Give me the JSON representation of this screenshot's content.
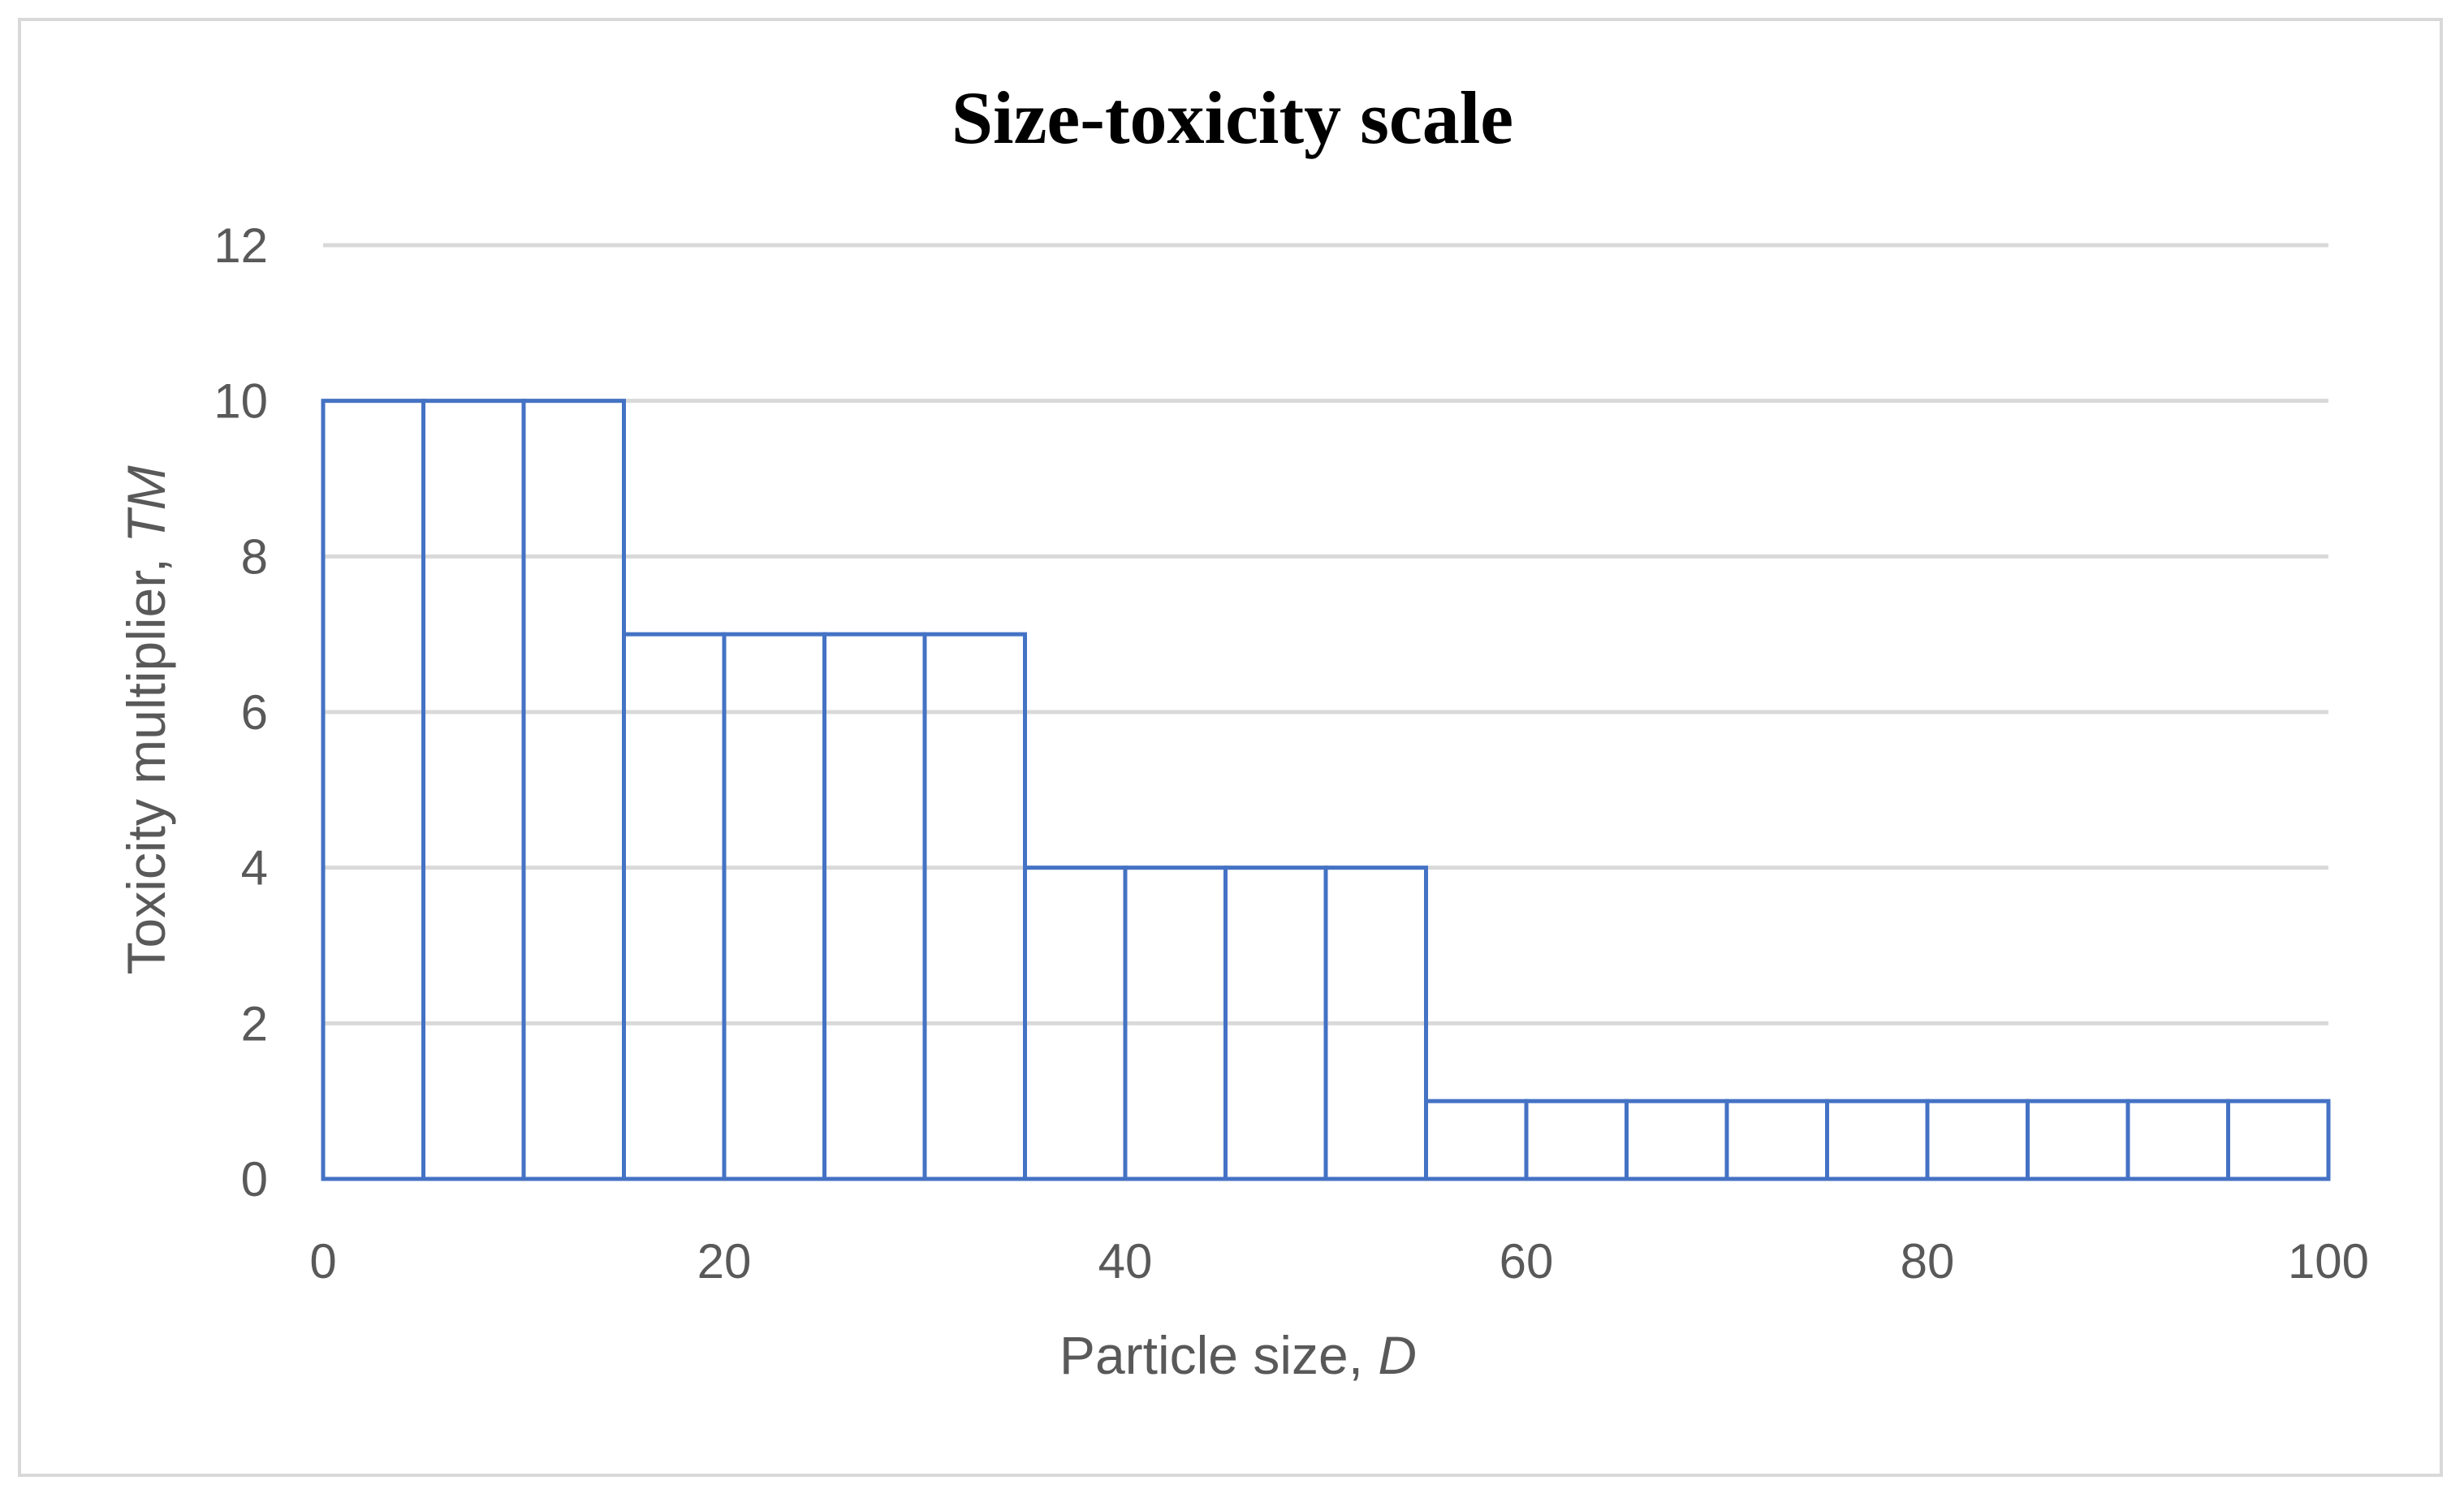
{
  "chart_data": {
    "type": "bar",
    "title": "Size-toxicity scale",
    "xlabel": "Particle size, ",
    "xlabel_var": "D",
    "ylabel": "Toxicity multiplier, ",
    "ylabel_var": "TM",
    "xlim": [
      0,
      100
    ],
    "ylim": [
      0,
      12
    ],
    "xticks": [
      0,
      20,
      40,
      60,
      80,
      100
    ],
    "yticks": [
      0,
      2,
      4,
      6,
      8,
      10,
      12
    ],
    "grid": true,
    "bin_width": 5,
    "x": [
      2.5,
      7.5,
      12.5,
      17.5,
      22.5,
      27.5,
      32.5,
      37.5,
      42.5,
      47.5,
      52.5,
      57.5,
      62.5,
      67.5,
      72.5,
      77.5,
      82.5,
      87.5,
      92.5,
      97.5
    ],
    "values": [
      10,
      10,
      10,
      7,
      7,
      7,
      7,
      4,
      4,
      4,
      4,
      1,
      1,
      1,
      1,
      1,
      1,
      1,
      1,
      1
    ],
    "series_color": "#4472c4",
    "grid_color": "#d9d9d9",
    "text_color": "#595959"
  }
}
